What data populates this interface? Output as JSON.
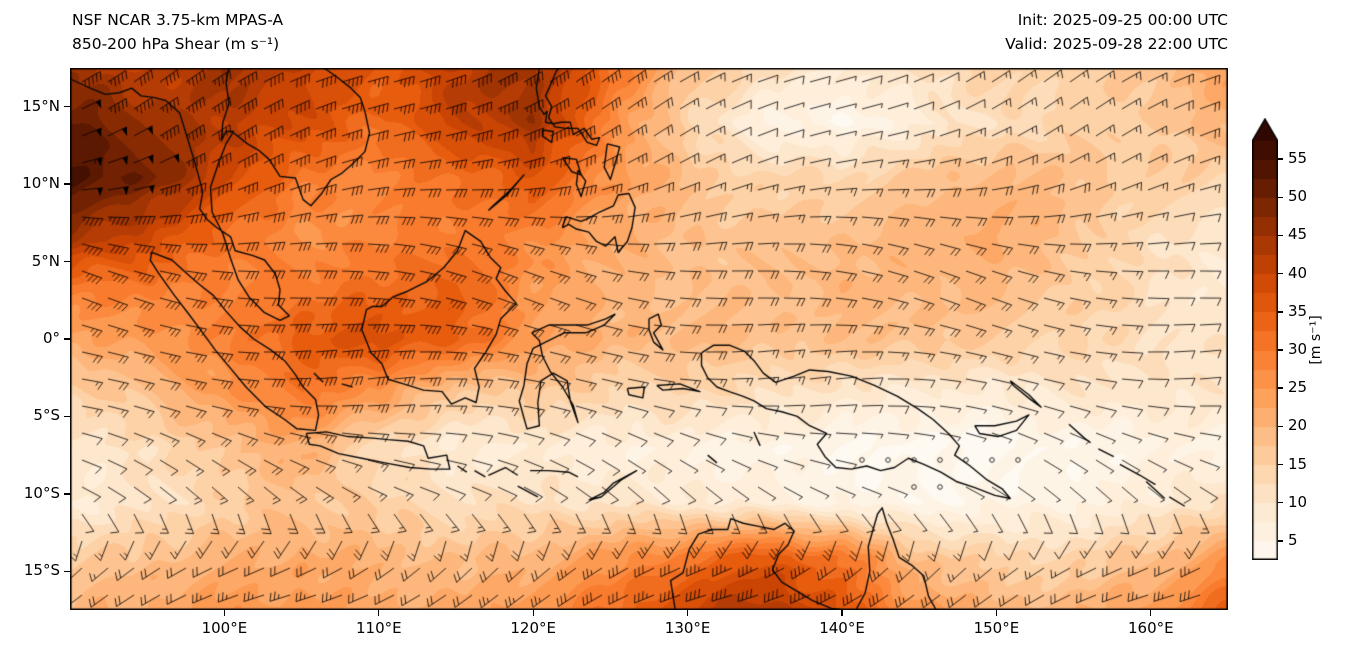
{
  "header": {
    "title_line1": "NSF NCAR 3.75-km MPAS-A",
    "title_line2": "850-200 hPa Shear (m s⁻¹)",
    "init_label": "Init: 2025-09-25 00:00 UTC",
    "valid_label": "Valid: 2025-09-28 22:00 UTC"
  },
  "axes": {
    "x_ticks": [
      {
        "lon": 100,
        "label": "100°E"
      },
      {
        "lon": 110,
        "label": "110°E"
      },
      {
        "lon": 120,
        "label": "120°E"
      },
      {
        "lon": 130,
        "label": "130°E"
      },
      {
        "lon": 140,
        "label": "140°E"
      },
      {
        "lon": 150,
        "label": "150°E"
      },
      {
        "lon": 160,
        "label": "160°E"
      }
    ],
    "y_ticks": [
      {
        "lat": 15,
        "label": "15°N"
      },
      {
        "lat": 10,
        "label": "10°N"
      },
      {
        "lat": 5,
        "label": "5°N"
      },
      {
        "lat": 0,
        "label": "0°"
      },
      {
        "lat": -5,
        "label": "5°S"
      },
      {
        "lat": -10,
        "label": "10°S"
      },
      {
        "lat": -15,
        "label": "15°S"
      }
    ]
  },
  "colorbar": {
    "label": "[m s⁻¹]",
    "ticks": [
      5,
      10,
      15,
      20,
      25,
      30,
      35,
      40,
      45,
      50,
      55
    ],
    "vmin": 2.5,
    "vmax": 57.5,
    "extend": "max"
  },
  "chart_data": {
    "type": "heatmap",
    "title": "NSF NCAR 3.75-km MPAS-A 850-200 hPa Shear",
    "units": "m s⁻¹",
    "init_time": "2025-09-25 00:00 UTC",
    "valid_time": "2025-09-28 22:00 UTC",
    "lon_range": [
      90,
      165
    ],
    "lat_range": [
      -17.5,
      17.5
    ],
    "contour_interval": 2.5,
    "grid": {
      "lons": [
        90,
        95,
        100,
        105,
        110,
        115,
        120,
        125,
        130,
        135,
        140,
        145,
        150,
        155,
        160,
        165
      ],
      "lats": [
        17.5,
        14,
        10.5,
        7,
        3.5,
        0,
        -3.5,
        -7,
        -10.5,
        -14,
        -17.5
      ],
      "shear_values": [
        [
          45,
          40,
          45,
          40,
          35,
          42,
          46,
          32,
          18,
          12,
          8,
          12,
          15,
          15,
          18,
          24
        ],
        [
          52,
          46,
          42,
          38,
          32,
          40,
          45,
          28,
          14,
          6,
          4,
          8,
          12,
          14,
          16,
          20
        ],
        [
          55,
          50,
          40,
          30,
          28,
          32,
          36,
          26,
          18,
          14,
          14,
          17,
          20,
          18,
          15,
          15
        ],
        [
          46,
          40,
          32,
          26,
          28,
          30,
          28,
          22,
          18,
          17,
          18,
          20,
          22,
          18,
          12,
          10
        ],
        [
          30,
          30,
          28,
          30,
          32,
          35,
          25,
          20,
          18,
          18,
          20,
          20,
          20,
          16,
          12,
          8
        ],
        [
          22,
          25,
          28,
          35,
          38,
          34,
          25,
          20,
          20,
          18,
          18,
          18,
          16,
          14,
          12,
          10
        ],
        [
          15,
          18,
          25,
          30,
          25,
          15,
          17,
          14,
          14,
          12,
          10,
          8,
          8,
          10,
          10,
          10
        ],
        [
          10,
          12,
          18,
          22,
          12,
          8,
          8,
          7,
          6,
          5,
          4,
          3,
          3,
          4,
          5,
          6
        ],
        [
          8,
          10,
          15,
          18,
          15,
          12,
          12,
          10,
          9,
          7,
          5,
          4,
          5,
          6,
          8,
          12
        ],
        [
          15,
          18,
          20,
          22,
          20,
          18,
          20,
          25,
          30,
          36,
          30,
          18,
          14,
          14,
          18,
          25
        ],
        [
          20,
          22,
          25,
          25,
          22,
          22,
          26,
          32,
          40,
          44,
          36,
          25,
          20,
          20,
          25,
          35
        ]
      ]
    },
    "wind_barbs": {
      "barb_half_unit": 5,
      "barb_full_unit": 10,
      "barb_pennant_unit": 50,
      "calm_circle_below": 4,
      "dir_from_by_lat_row": [
        60,
        70,
        80,
        90,
        95,
        95,
        100,
        110,
        120,
        230,
        250
      ]
    },
    "colormap_stops": [
      [
        0,
        "#ffffff"
      ],
      [
        5,
        "#fef4e6"
      ],
      [
        10,
        "#fde7cd"
      ],
      [
        15,
        "#fdd2a6"
      ],
      [
        20,
        "#fdb77c"
      ],
      [
        25,
        "#fd9a51"
      ],
      [
        30,
        "#f97b2d"
      ],
      [
        35,
        "#e85c0e"
      ],
      [
        40,
        "#ca4404"
      ],
      [
        45,
        "#a03403"
      ],
      [
        50,
        "#722202"
      ],
      [
        55,
        "#451001"
      ],
      [
        60,
        "#2d0801"
      ]
    ]
  }
}
